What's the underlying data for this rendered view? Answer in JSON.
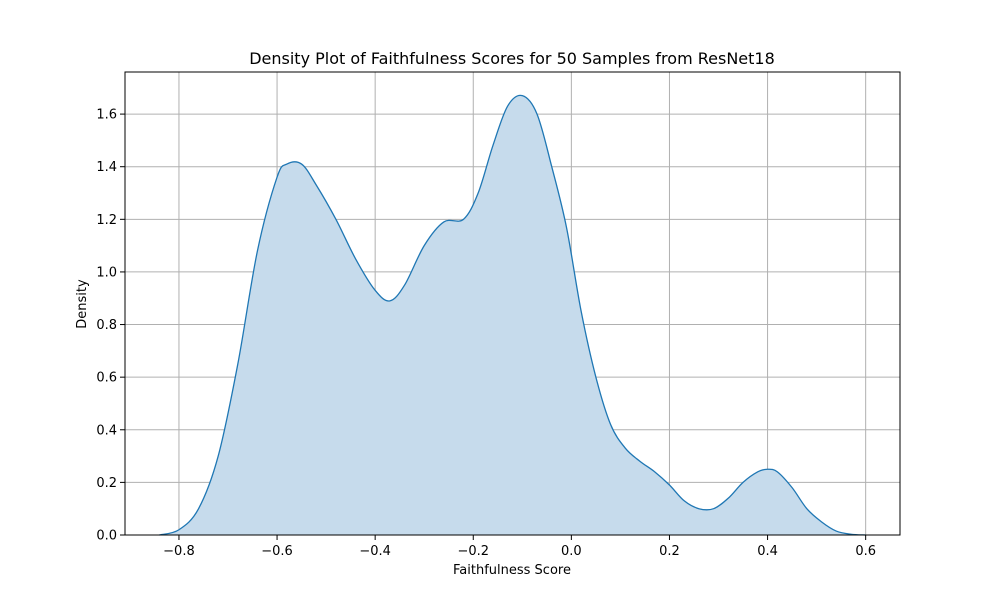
{
  "chart_data": {
    "type": "area",
    "title": "Density Plot of Faithfulness Scores for 50 Samples from ResNet18",
    "xlabel": "Faithfulness Score",
    "ylabel": "Density",
    "xlim": [
      -0.91,
      0.67
    ],
    "ylim": [
      0,
      1.76
    ],
    "xticks": [
      -0.8,
      -0.6,
      -0.4,
      -0.2,
      0.0,
      0.2,
      0.4,
      0.6
    ],
    "xtick_labels": [
      "−0.8",
      "−0.6",
      "−0.4",
      "−0.2",
      "0.0",
      "0.2",
      "0.4",
      "0.6"
    ],
    "yticks": [
      0.0,
      0.2,
      0.4,
      0.6,
      0.8,
      1.0,
      1.2,
      1.4,
      1.6
    ],
    "ytick_labels": [
      "0.0",
      "0.2",
      "0.4",
      "0.6",
      "0.8",
      "1.0",
      "1.2",
      "1.4",
      "1.6"
    ],
    "grid": true,
    "series": [
      {
        "line_color": "#1f77b4",
        "fill_color": "#c6dbec",
        "x": [
          -0.84,
          -0.8,
          -0.76,
          -0.72,
          -0.68,
          -0.64,
          -0.6,
          -0.58,
          -0.55,
          -0.52,
          -0.48,
          -0.44,
          -0.4,
          -0.37,
          -0.34,
          -0.3,
          -0.26,
          -0.22,
          -0.19,
          -0.16,
          -0.13,
          -0.1,
          -0.07,
          -0.04,
          -0.01,
          0.02,
          0.05,
          0.08,
          0.11,
          0.14,
          0.17,
          0.2,
          0.23,
          0.26,
          0.29,
          0.32,
          0.35,
          0.38,
          0.4,
          0.42,
          0.45,
          0.48,
          0.51,
          0.54,
          0.57,
          0.6
        ],
        "y": [
          0.0,
          0.02,
          0.1,
          0.3,
          0.65,
          1.08,
          1.36,
          1.41,
          1.41,
          1.33,
          1.2,
          1.05,
          0.93,
          0.89,
          0.95,
          1.1,
          1.19,
          1.2,
          1.3,
          1.48,
          1.63,
          1.67,
          1.6,
          1.4,
          1.17,
          0.85,
          0.6,
          0.42,
          0.33,
          0.28,
          0.24,
          0.19,
          0.13,
          0.1,
          0.1,
          0.14,
          0.2,
          0.24,
          0.25,
          0.24,
          0.18,
          0.1,
          0.05,
          0.015,
          0.003,
          0.0
        ]
      }
    ]
  }
}
